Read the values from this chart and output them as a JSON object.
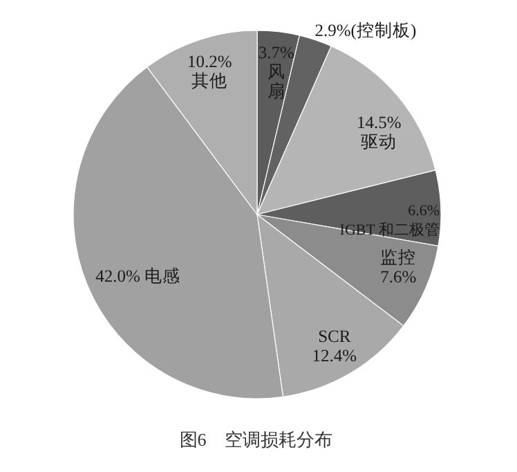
{
  "chart_data": {
    "type": "pie",
    "categories": [
      "风扇",
      "(控制板)",
      "驱动",
      "IGBT 和二极管",
      "监控",
      "SCR",
      "电感",
      "其他"
    ],
    "values": [
      3.7,
      2.9,
      14.5,
      6.6,
      7.6,
      12.4,
      42.0,
      10.2
    ],
    "value_labels": [
      "3.7%",
      "2.9%",
      "14.5%",
      "6.6%",
      "7.6%",
      "12.4%",
      "42.0%",
      "10.2%"
    ],
    "colors": [
      "#5c5c5c",
      "#626262",
      "#b5b5b5",
      "#5e5e5e",
      "#8c8c8c",
      "#a9a9a9",
      "#a1a1a1",
      "#afafaf"
    ],
    "annotations": [
      "图6　空调损耗分布"
    ]
  }
}
